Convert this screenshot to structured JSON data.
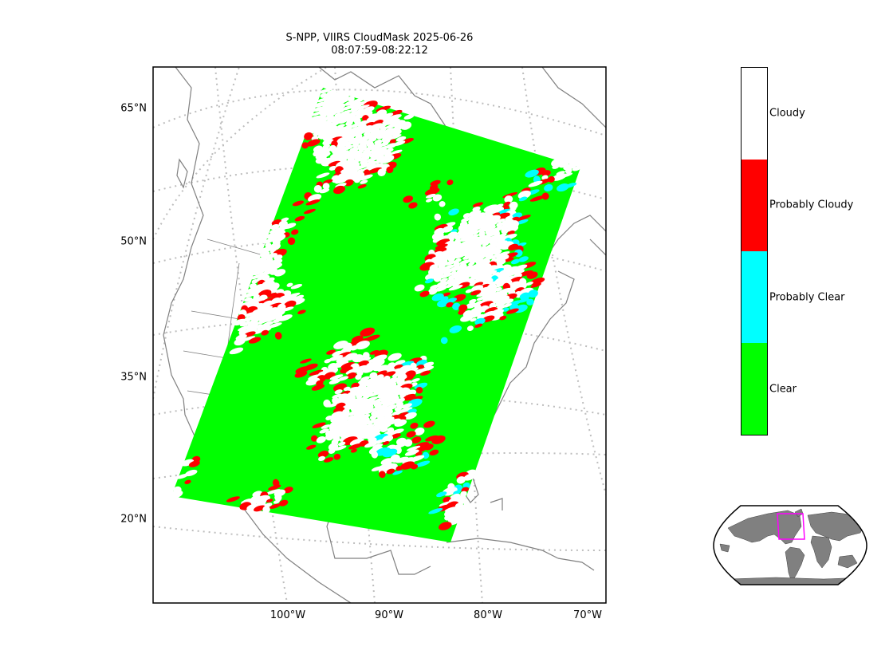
{
  "title": "S-NPP, VIIRS CloudMask 2025-06-26\n08:07:59-08:22:12",
  "latitude_labels": [
    "65°N",
    "50°N",
    "35°N",
    "20°N"
  ],
  "longitude_labels": [
    "100°W",
    "90°W",
    "80°W",
    "70°W"
  ],
  "colorbar": {
    "categories": [
      {
        "label": "Cloudy",
        "color": "#ffffff"
      },
      {
        "label": "Probably Cloudy",
        "color": "#ff0000"
      },
      {
        "label": "Probably Clear",
        "color": "#00ffff"
      },
      {
        "label": "Clear",
        "color": "#00ff00"
      }
    ]
  },
  "colors": {
    "coastline": "#808080",
    "gridline": "#bdbdbd",
    "land_inset": "#808080",
    "swath_box": "#ff00ff"
  }
}
